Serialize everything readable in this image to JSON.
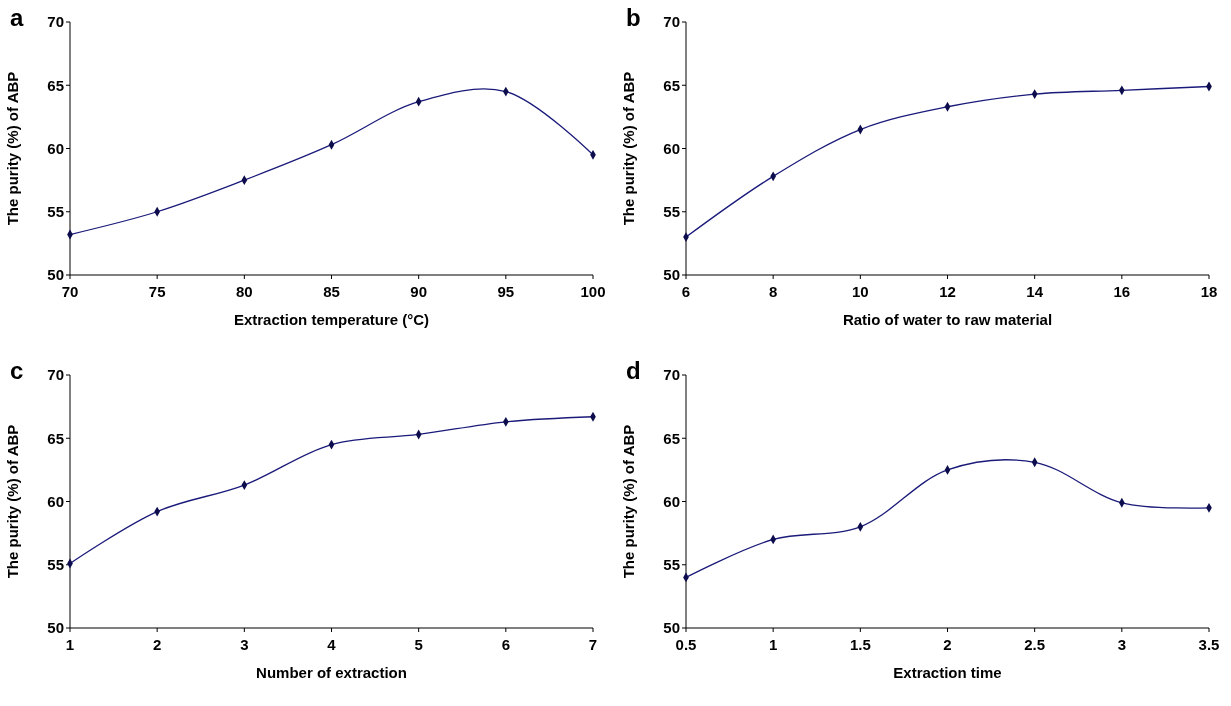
{
  "chart_data": [
    {
      "type": "line",
      "title": "a",
      "xlabel": "Extraction temperature (°C)",
      "ylabel": "The purity (%) of ABP",
      "x": [
        70,
        75,
        80,
        85,
        90,
        95,
        100
      ],
      "series": [
        {
          "color": "#1a1a7a",
          "values": [
            53.2,
            55,
            57.5,
            60.3,
            63.7,
            64.5,
            59.5
          ]
        }
      ],
      "xlim": [
        70,
        100
      ],
      "xticks": [
        70,
        75,
        80,
        85,
        90,
        95,
        100
      ],
      "ylim": [
        50,
        70
      ],
      "yticks": [
        50,
        55,
        60,
        65,
        70
      ],
      "marker": "diamond"
    },
    {
      "type": "line",
      "title": "b",
      "xlabel": "Ratio of water to raw material",
      "ylabel": "The purity (%) of ABP",
      "x": [
        6,
        8,
        10,
        12,
        14,
        16,
        18
      ],
      "series": [
        {
          "color": "#1a1a7a",
          "values": [
            53,
            57.8,
            61.5,
            63.3,
            64.3,
            64.6,
            64.9
          ]
        }
      ],
      "xlim": [
        6,
        18
      ],
      "xticks": [
        6,
        8,
        10,
        12,
        14,
        16,
        18
      ],
      "ylim": [
        50,
        70
      ],
      "yticks": [
        50,
        55,
        60,
        65,
        70
      ],
      "marker": "diamond"
    },
    {
      "type": "line",
      "title": "c",
      "xlabel": "Number of extraction",
      "ylabel": "The purity (%) of ABP",
      "x": [
        1,
        2,
        3,
        4,
        5,
        6,
        7
      ],
      "series": [
        {
          "color": "#1a1a7a",
          "values": [
            55.1,
            59.2,
            61.3,
            64.5,
            65.3,
            66.3,
            66.7
          ]
        }
      ],
      "xlim": [
        1,
        7
      ],
      "xticks": [
        1,
        2,
        3,
        4,
        5,
        6,
        7
      ],
      "ylim": [
        50,
        70
      ],
      "yticks": [
        50,
        55,
        60,
        65,
        70
      ],
      "marker": "diamond"
    },
    {
      "type": "line",
      "title": "d",
      "xlabel": "Extraction time",
      "ylabel": "The purity (%) of ABP",
      "x": [
        0.5,
        1,
        1.5,
        2,
        2.5,
        3,
        3.5
      ],
      "series": [
        {
          "color": "#1a1a7a",
          "values": [
            54,
            57,
            58,
            62.5,
            63.1,
            59.9,
            59.5
          ]
        }
      ],
      "xlim": [
        0.5,
        3.5
      ],
      "xticks": [
        0.5,
        1,
        1.5,
        2,
        2.5,
        3,
        3.5
      ],
      "ylim": [
        50,
        70
      ],
      "yticks": [
        50,
        55,
        60,
        65,
        70
      ],
      "marker": "diamond"
    }
  ]
}
